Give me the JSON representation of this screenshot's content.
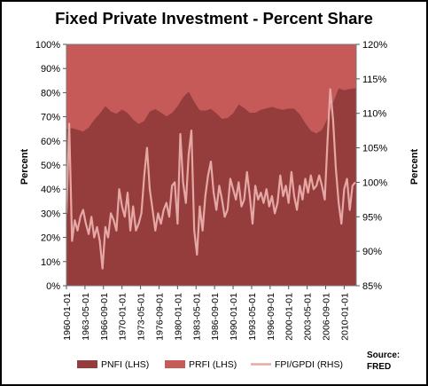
{
  "chart_data": {
    "type": "area",
    "title": "Fixed Private Investment - Percent Share",
    "ylabel_left": "Percent",
    "ylabel_right": "Percent",
    "y_left_ticks": [
      "0%",
      "10%",
      "20%",
      "30%",
      "40%",
      "50%",
      "60%",
      "70%",
      "80%",
      "90%",
      "100%"
    ],
    "y_right_ticks": [
      "85%",
      "90%",
      "95%",
      "100%",
      "105%",
      "110%",
      "115%",
      "120%"
    ],
    "ylim_left": [
      0,
      100
    ],
    "ylim_right": [
      85,
      120
    ],
    "x_tick_labels": [
      "1960-01-01",
      "1963-05-01",
      "1966-09-01",
      "1970-01-01",
      "1973-05-01",
      "1976-09-01",
      "1980-01-01",
      "1983-05-01",
      "1986-09-01",
      "1990-01-01",
      "1993-05-01",
      "1996-09-01",
      "2000-01-01",
      "2003-05-01",
      "2006-09-01",
      "2010-01-01"
    ],
    "x_range": [
      "1960-01-01",
      "2012-03-01"
    ],
    "grid": false,
    "legend_position": "bottom",
    "colors": {
      "plot_background": "#c65a59",
      "pnfi": "#953d3d",
      "prfi": "#c65a59",
      "fpi_gpdi": "#e5a8a5"
    },
    "series": [
      {
        "name": "PNFI (LHS)",
        "kind": "stacked-area",
        "axis": "left",
        "dates": [
          "1960-01",
          "1961-01",
          "1962-01",
          "1963-01",
          "1964-01",
          "1965-01",
          "1966-01",
          "1967-01",
          "1968-01",
          "1969-01",
          "1970-01",
          "1971-01",
          "1972-01",
          "1973-01",
          "1974-01",
          "1975-01",
          "1976-01",
          "1977-01",
          "1978-01",
          "1979-01",
          "1980-01",
          "1981-01",
          "1982-01",
          "1983-01",
          "1984-01",
          "1985-01",
          "1986-01",
          "1987-01",
          "1988-01",
          "1989-01",
          "1990-01",
          "1991-01",
          "1992-01",
          "1993-01",
          "1994-01",
          "1995-01",
          "1996-01",
          "1997-01",
          "1998-01",
          "1999-01",
          "2000-01",
          "2001-01",
          "2002-01",
          "2003-01",
          "2004-01",
          "2005-01",
          "2006-01",
          "2007-01",
          "2008-01",
          "2009-01",
          "2010-01",
          "2011-01",
          "2012-01"
        ],
        "values": [
          64.9,
          65.3,
          64.6,
          63.9,
          65.5,
          68.7,
          71.3,
          74.5,
          72.2,
          71.2,
          73.0,
          71.6,
          68.9,
          67.0,
          68.3,
          72.2,
          73.2,
          71.7,
          70.2,
          71.6,
          74.4,
          78.1,
          80.4,
          76.2,
          72.7,
          72.5,
          73.3,
          71.4,
          69.1,
          69.5,
          71.4,
          75.1,
          73.6,
          71.7,
          71.7,
          72.9,
          73.5,
          74.1,
          73.4,
          72.9,
          73.4,
          73.4,
          71.0,
          67.4,
          64.2,
          63.1,
          64.6,
          69.3,
          75.8,
          81.8,
          81.0,
          81.5,
          81.8
        ]
      },
      {
        "name": "PRFI (LHS)",
        "kind": "stacked-area",
        "axis": "left",
        "note": "complement of PNFI to 100%"
      },
      {
        "name": "FPI/GPDI (RHS)",
        "kind": "line",
        "axis": "right",
        "dates": [
          "1960-01",
          "1960-07",
          "1961-01",
          "1961-07",
          "1962-01",
          "1962-07",
          "1963-01",
          "1963-07",
          "1964-01",
          "1964-07",
          "1965-01",
          "1965-07",
          "1966-01",
          "1966-07",
          "1967-01",
          "1967-07",
          "1968-01",
          "1968-07",
          "1969-01",
          "1969-07",
          "1970-01",
          "1970-07",
          "1971-01",
          "1971-07",
          "1972-01",
          "1972-07",
          "1973-01",
          "1973-07",
          "1974-01",
          "1974-07",
          "1975-01",
          "1975-07",
          "1976-01",
          "1976-07",
          "1977-01",
          "1977-07",
          "1978-01",
          "1978-07",
          "1979-01",
          "1979-07",
          "1980-01",
          "1980-07",
          "1981-01",
          "1981-07",
          "1982-01",
          "1982-07",
          "1983-01",
          "1983-07",
          "1984-01",
          "1984-07",
          "1985-01",
          "1985-07",
          "1986-01",
          "1986-07",
          "1987-01",
          "1987-07",
          "1988-01",
          "1988-07",
          "1989-01",
          "1989-07",
          "1990-01",
          "1990-07",
          "1991-01",
          "1991-07",
          "1992-01",
          "1992-07",
          "1993-01",
          "1993-07",
          "1994-01",
          "1994-07",
          "1995-01",
          "1995-07",
          "1996-01",
          "1996-07",
          "1997-01",
          "1997-07",
          "1998-01",
          "1998-07",
          "1999-01",
          "1999-07",
          "2000-01",
          "2000-07",
          "2001-01",
          "2001-07",
          "2002-01",
          "2002-07",
          "2003-01",
          "2003-07",
          "2004-01",
          "2004-07",
          "2005-01",
          "2005-07",
          "2006-01",
          "2006-07",
          "2007-01",
          "2007-07",
          "2008-01",
          "2008-07",
          "2009-01",
          "2009-07",
          "2010-01",
          "2010-07",
          "2011-01",
          "2011-07",
          "2012-01"
        ],
        "values": [
          95.5,
          108.5,
          91.5,
          94.5,
          93.0,
          95.0,
          96.0,
          94.0,
          92.5,
          95.0,
          92.0,
          93.5,
          91.5,
          87.5,
          93.5,
          92.0,
          95.5,
          94.5,
          93.0,
          99.0,
          96.5,
          95.0,
          98.5,
          93.0,
          96.5,
          93.0,
          94.0,
          95.5,
          101.0,
          105.0,
          99.0,
          96.0,
          93.0,
          95.5,
          94.0,
          96.0,
          97.0,
          95.0,
          99.5,
          100.0,
          94.0,
          107.0,
          100.0,
          97.0,
          104.0,
          107.5,
          93.0,
          89.5,
          96.5,
          93.0,
          98.0,
          101.0,
          103.0,
          98.5,
          96.0,
          99.5,
          97.5,
          95.0,
          96.0,
          100.5,
          99.0,
          97.5,
          100.0,
          96.5,
          97.5,
          101.5,
          98.0,
          94.0,
          99.5,
          97.5,
          98.5,
          97.0,
          99.0,
          96.5,
          98.0,
          95.5,
          97.0,
          101.0,
          98.0,
          99.5,
          97.0,
          101.5,
          98.0,
          96.0,
          99.5,
          97.5,
          100.5,
          98.5,
          101.0,
          99.0,
          99.5,
          101.0,
          99.5,
          97.5,
          106.0,
          113.5,
          109.0,
          102.0,
          97.0,
          94.0,
          99.0,
          100.5,
          96.0,
          99.5,
          100.0
        ]
      }
    ]
  },
  "source_note": "Source:\nFRED"
}
